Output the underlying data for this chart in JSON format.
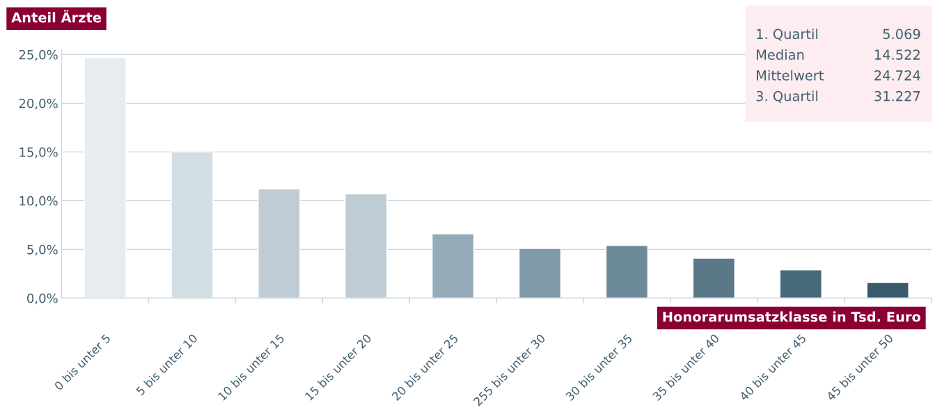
{
  "chart_data": {
    "type": "bar",
    "ylabel": "Anteil Ärzte",
    "xlabel": "Honorarumsatzklasse in Tsd. Euro",
    "categories": [
      "0 bis unter 5",
      "5 bis unter 10",
      "10 bis unter 15",
      "15 bis unter 20",
      "20 bis unter 25",
      "255 bis unter 30",
      "30 bis unter 35",
      "35 bis unter 40",
      "40 bis unter 45",
      "45 bis unter 50"
    ],
    "values": [
      24.7,
      15.0,
      11.2,
      10.7,
      6.6,
      5.1,
      5.4,
      4.1,
      2.9,
      1.6
    ],
    "colors": [
      "#e7ecf0",
      "#d3dde4",
      "#bfccd6",
      "#bfccd6",
      "#95abb8",
      "#7f9aa9",
      "#6d8a9b",
      "#5a7888",
      "#476a7b",
      "#3a5a6b"
    ],
    "ylim": [
      0,
      25.5
    ],
    "yticks": [
      {
        "value": 0,
        "label": "0,0%"
      },
      {
        "value": 5,
        "label": "5,0%"
      },
      {
        "value": 10,
        "label": "10,0%"
      },
      {
        "value": 15,
        "label": "15,0%"
      },
      {
        "value": 20,
        "label": "20,0%"
      },
      {
        "value": 25,
        "label": "25,0%"
      }
    ],
    "grid": "y",
    "annotations": [
      "1. Quartil",
      "5.069",
      "Median",
      "14.522",
      "Mittelwert",
      "24.724",
      "3. Quartil",
      "31.227"
    ]
  }
}
